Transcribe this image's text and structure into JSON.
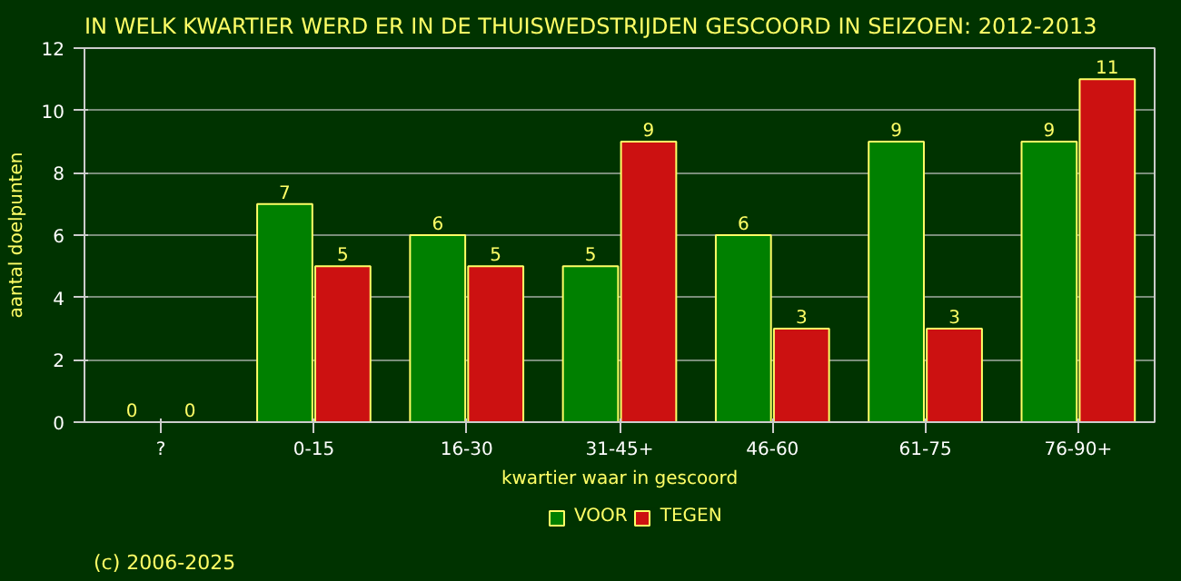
{
  "chart_data": {
    "type": "bar",
    "title": "IN WELK KWARTIER WERD ER IN DE THUISWEDSTRIJDEN GESCOORD IN SEIZOEN: 2012-2013",
    "categories": [
      "?",
      "0-15",
      "16-30",
      "31-45+",
      "46-60",
      "61-75",
      "76-90+"
    ],
    "series": [
      {
        "name": "VOOR",
        "color": "#008000",
        "values": [
          0,
          7,
          6,
          5,
          6,
          9,
          9
        ]
      },
      {
        "name": "TEGEN",
        "color": "#cc1111",
        "values": [
          0,
          5,
          5,
          9,
          3,
          3,
          11
        ]
      }
    ],
    "xlabel": "kwartier waar in gescoord",
    "ylabel": "aantal doelpunten",
    "ylim": [
      0,
      12
    ],
    "yticks": [
      0,
      2,
      4,
      6,
      8,
      10,
      12
    ],
    "grid": "y",
    "legend": "bottom",
    "data_labels": true,
    "annotations": [
      "(c) 2006-2025"
    ]
  }
}
